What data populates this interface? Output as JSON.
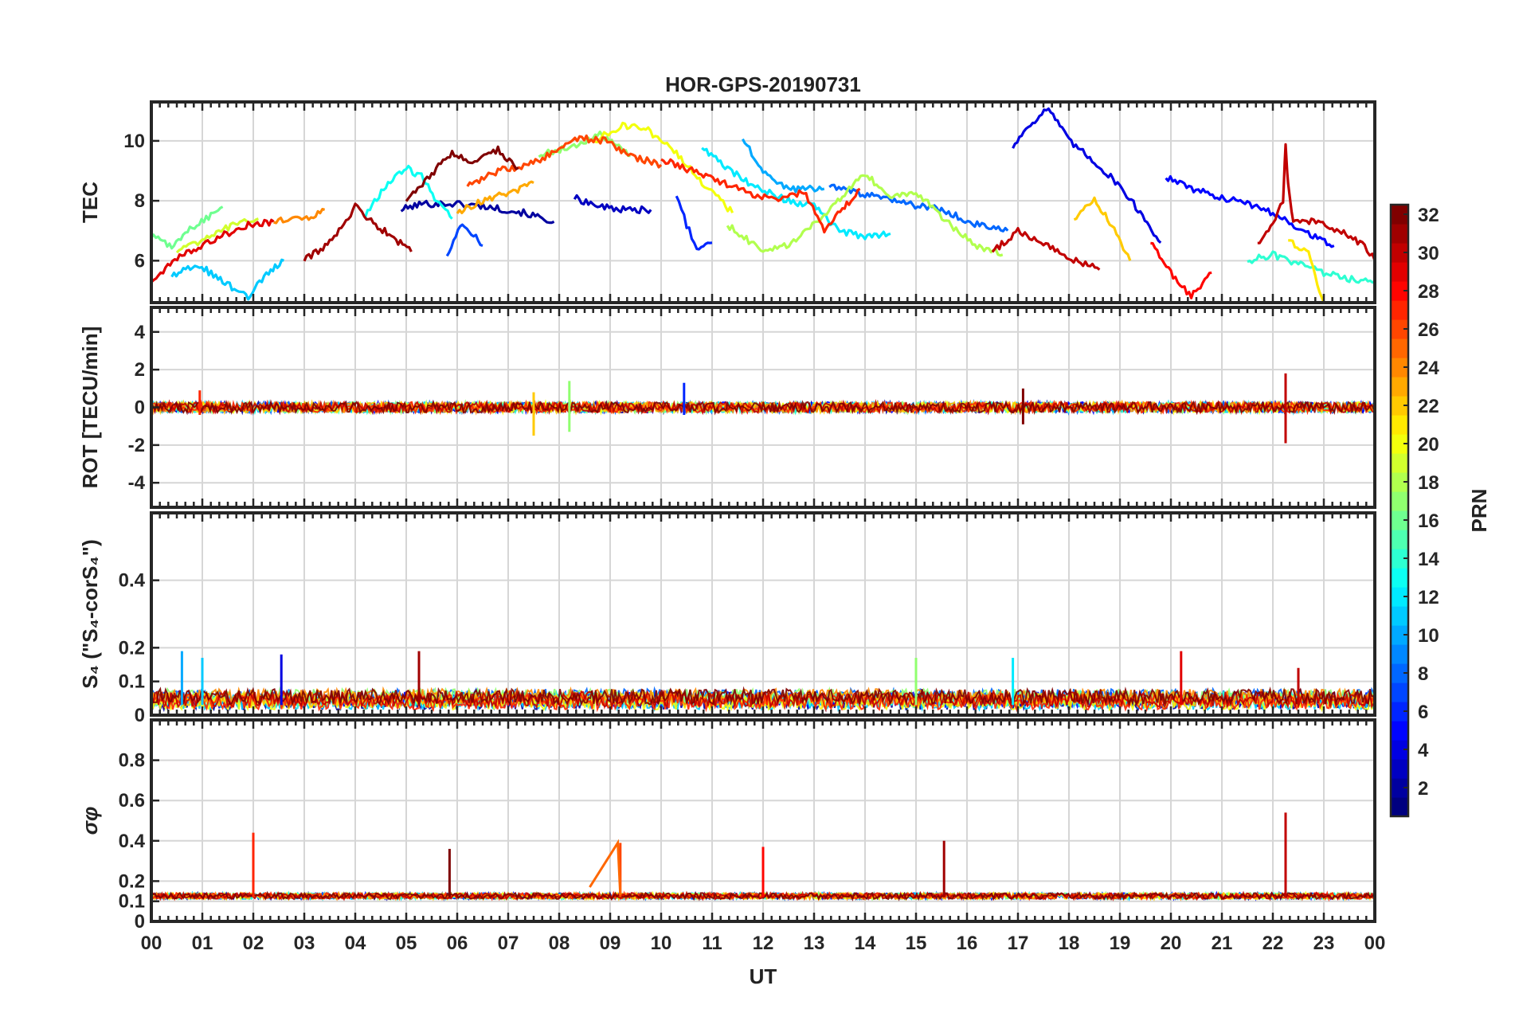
{
  "chart_data": {
    "title": "HOR-GPS-20190731",
    "xlabel": "UT",
    "x_tick_labels": [
      "00",
      "01",
      "02",
      "03",
      "04",
      "05",
      "06",
      "07",
      "08",
      "09",
      "10",
      "11",
      "12",
      "13",
      "14",
      "15",
      "16",
      "17",
      "18",
      "19",
      "20",
      "21",
      "22",
      "23",
      "00"
    ],
    "xlim": [
      0,
      24
    ],
    "grid": true,
    "colorbar": {
      "label": "PRN",
      "range": [
        1,
        32
      ],
      "ticks": [
        2,
        4,
        6,
        8,
        10,
        12,
        14,
        16,
        18,
        20,
        22,
        24,
        26,
        28,
        30,
        32
      ],
      "tick_labels": [
        "2",
        "4",
        "6",
        "8",
        "10",
        "12",
        "14",
        "16",
        "18",
        "20",
        "22",
        "24",
        "26",
        "28",
        "30",
        "32"
      ],
      "colormap": "jet",
      "colors": [
        "#00008f",
        "#0000ff",
        "#0080ff",
        "#00ffff",
        "#80ff80",
        "#ffff00",
        "#ff8000",
        "#ff0000",
        "#800000"
      ]
    },
    "panels": [
      {
        "type": "line",
        "ylabel": "TEC",
        "ylim": [
          4.6,
          11.3
        ],
        "yticks": [
          6,
          8,
          10
        ],
        "ytick_labels": [
          "6",
          "8",
          "10"
        ],
        "series": [
          {
            "prn": 2,
            "points": [
              [
                4.9,
                7.7
              ],
              [
                5.3,
                7.9
              ],
              [
                6.0,
                7.9
              ],
              [
                6.6,
                7.8
              ],
              [
                7.3,
                7.6
              ],
              [
                7.9,
                7.3
              ]
            ]
          },
          {
            "prn": 3,
            "points": [
              [
                8.3,
                8.1
              ],
              [
                8.8,
                7.8
              ],
              [
                9.3,
                7.7
              ],
              [
                9.8,
                7.7
              ]
            ]
          },
          {
            "prn": 4,
            "points": [
              [
                16.9,
                9.8
              ],
              [
                17.2,
                10.5
              ],
              [
                17.6,
                11.1
              ],
              [
                18.0,
                10.0
              ],
              [
                18.5,
                9.3
              ],
              [
                19.0,
                8.5
              ],
              [
                19.4,
                7.6
              ],
              [
                19.8,
                6.6
              ]
            ]
          },
          {
            "prn": 5,
            "points": [
              [
                19.9,
                8.8
              ],
              [
                20.4,
                8.4
              ],
              [
                21.0,
                8.1
              ],
              [
                21.5,
                7.9
              ],
              [
                22.0,
                7.6
              ],
              [
                22.6,
                7.0
              ],
              [
                23.2,
                6.5
              ]
            ]
          },
          {
            "prn": 6,
            "points": [
              [
                10.3,
                8.2
              ],
              [
                10.5,
                7.2
              ],
              [
                10.7,
                6.4
              ],
              [
                11.0,
                6.6
              ]
            ]
          },
          {
            "prn": 7,
            "points": [
              [
                5.8,
                6.2
              ],
              [
                6.1,
                7.3
              ],
              [
                6.5,
                6.5
              ]
            ]
          },
          {
            "prn": 8,
            "points": [
              [
                13.3,
                8.5
              ],
              [
                14.0,
                8.2
              ],
              [
                14.8,
                7.9
              ],
              [
                15.5,
                7.7
              ],
              [
                16.2,
                7.2
              ],
              [
                16.8,
                7.0
              ]
            ]
          },
          {
            "prn": 10,
            "points": [
              [
                11.6,
                10.1
              ],
              [
                12.0,
                9.0
              ],
              [
                12.5,
                8.4
              ],
              [
                13.2,
                8.4
              ]
            ]
          },
          {
            "prn": 11,
            "points": [
              [
                0.4,
                5.5
              ],
              [
                0.9,
                5.9
              ],
              [
                1.4,
                5.3
              ],
              [
                1.9,
                4.8
              ],
              [
                2.3,
                5.6
              ],
              [
                2.6,
                6.0
              ]
            ]
          },
          {
            "prn": 12,
            "points": [
              [
                10.8,
                9.8
              ],
              [
                11.3,
                9.1
              ],
              [
                11.8,
                8.5
              ],
              [
                12.5,
                8.0
              ],
              [
                13.0,
                7.8
              ],
              [
                13.5,
                7.0
              ],
              [
                14.0,
                6.8
              ],
              [
                14.5,
                6.9
              ]
            ]
          },
          {
            "prn": 13,
            "points": [
              [
                4.2,
                7.5
              ],
              [
                4.6,
                8.5
              ],
              [
                5.0,
                9.1
              ],
              [
                5.3,
                8.8
              ],
              [
                5.6,
                8.0
              ],
              [
                5.9,
                7.4
              ]
            ]
          },
          {
            "prn": 14,
            "points": [
              [
                21.5,
                6.0
              ],
              [
                22.0,
                6.2
              ],
              [
                22.5,
                5.9
              ],
              [
                23.0,
                5.6
              ],
              [
                23.5,
                5.4
              ],
              [
                24.0,
                5.3
              ]
            ]
          },
          {
            "prn": 16,
            "points": [
              [
                0.0,
                6.8
              ],
              [
                0.4,
                6.5
              ],
              [
                0.8,
                7.1
              ],
              [
                1.4,
                7.8
              ]
            ]
          },
          {
            "prn": 17,
            "points": [
              [
                7.6,
                9.5
              ],
              [
                8.2,
                9.8
              ],
              [
                8.8,
                10.2
              ],
              [
                9.4,
                9.5
              ]
            ]
          },
          {
            "prn": 18,
            "points": [
              [
                11.3,
                7.2
              ],
              [
                12.0,
                6.3
              ],
              [
                12.6,
                6.6
              ],
              [
                13.2,
                7.5
              ],
              [
                14.0,
                8.9
              ],
              [
                14.5,
                8.1
              ],
              [
                15.0,
                8.3
              ],
              [
                15.6,
                7.3
              ],
              [
                16.2,
                6.5
              ],
              [
                16.7,
                6.2
              ]
            ]
          },
          {
            "prn": 19,
            "points": [
              [
                0.5,
                6.3
              ],
              [
                1.0,
                6.7
              ],
              [
                1.6,
                7.2
              ],
              [
                2.1,
                7.4
              ]
            ]
          },
          {
            "prn": 20,
            "points": [
              [
                8.7,
                10.0
              ],
              [
                9.2,
                10.5
              ],
              [
                9.7,
                10.4
              ],
              [
                10.3,
                9.6
              ],
              [
                10.8,
                8.6
              ],
              [
                11.4,
                7.6
              ]
            ]
          },
          {
            "prn": 21,
            "points": [
              [
                22.3,
                6.7
              ],
              [
                22.7,
                6.2
              ],
              [
                23.0,
                4.6
              ]
            ]
          },
          {
            "prn": 22,
            "points": [
              [
                18.1,
                7.4
              ],
              [
                18.5,
                8.0
              ],
              [
                18.8,
                7.3
              ],
              [
                19.2,
                6.0
              ]
            ]
          },
          {
            "prn": 23,
            "points": [
              [
                6.0,
                7.6
              ],
              [
                6.5,
                8.0
              ],
              [
                7.1,
                8.3
              ],
              [
                7.5,
                8.6
              ]
            ]
          },
          {
            "prn": 24,
            "points": [
              [
                2.4,
                7.3
              ],
              [
                3.0,
                7.4
              ],
              [
                3.4,
                7.7
              ]
            ]
          },
          {
            "prn": 26,
            "points": [
              [
                6.2,
                8.5
              ],
              [
                6.8,
                9.0
              ],
              [
                7.4,
                9.2
              ],
              [
                7.9,
                9.6
              ],
              [
                8.4,
                10.1
              ],
              [
                8.9,
                10.0
              ],
              [
                9.4,
                9.5
              ],
              [
                10.0,
                9.2
              ]
            ]
          },
          {
            "prn": 27,
            "points": [
              [
                10.0,
                9.4
              ],
              [
                10.6,
                9.0
              ],
              [
                11.2,
                8.6
              ],
              [
                11.8,
                8.2
              ],
              [
                12.3,
                8.0
              ],
              [
                12.8,
                8.3
              ],
              [
                13.2,
                7.0
              ],
              [
                13.6,
                7.8
              ],
              [
                13.9,
                8.4
              ]
            ]
          },
          {
            "prn": 28,
            "points": [
              [
                19.6,
                6.6
              ],
              [
                20.0,
                5.6
              ],
              [
                20.4,
                4.8
              ],
              [
                20.8,
                5.6
              ]
            ]
          },
          {
            "prn": 29,
            "points": [
              [
                0.0,
                5.3
              ],
              [
                0.6,
                6.2
              ],
              [
                1.2,
                6.7
              ],
              [
                1.9,
                7.2
              ],
              [
                2.4,
                7.3
              ]
            ]
          },
          {
            "prn": 31,
            "points": [
              [
                3.0,
                6.0
              ],
              [
                3.5,
                6.6
              ],
              [
                4.0,
                7.8
              ],
              [
                4.4,
                7.2
              ],
              [
                4.8,
                6.7
              ],
              [
                5.1,
                6.3
              ]
            ]
          },
          {
            "prn": 32,
            "points": [
              [
                5.0,
                8.0
              ],
              [
                5.5,
                8.9
              ],
              [
                5.9,
                9.6
              ],
              [
                6.3,
                9.3
              ],
              [
                6.8,
                9.7
              ],
              [
                7.2,
                9.1
              ]
            ]
          },
          {
            "prn": 30,
            "points": [
              [
                21.7,
                6.6
              ],
              [
                22.0,
                7.2
              ],
              [
                22.2,
                8.0
              ],
              [
                22.25,
                9.8
              ],
              [
                22.3,
                8.5
              ],
              [
                22.4,
                7.3
              ],
              [
                22.8,
                7.3
              ],
              [
                23.3,
                7.0
              ],
              [
                23.8,
                6.5
              ],
              [
                24.0,
                6.0
              ]
            ]
          },
          {
            "prn": 30,
            "points": [
              [
                16.5,
                6.3
              ],
              [
                17.0,
                7.0
              ],
              [
                17.5,
                6.6
              ],
              [
                18.0,
                6.1
              ],
              [
                18.6,
                5.7
              ]
            ]
          }
        ]
      },
      {
        "type": "line",
        "ylabel": "ROT [TECU/min]",
        "ylim": [
          -5.3,
          5.3
        ],
        "yticks": [
          -4,
          -2,
          0,
          2,
          4
        ],
        "ytick_labels": [
          "-4",
          "-2",
          "0",
          "2",
          "4"
        ],
        "spikes": [
          {
            "prn": 30,
            "x": 22.25,
            "ymin": -1.9,
            "ymax": 1.8
          },
          {
            "prn": 17,
            "x": 8.2,
            "ymin": -1.3,
            "ymax": 1.4
          },
          {
            "prn": 22,
            "x": 7.5,
            "ymin": -1.5,
            "ymax": 0.8
          },
          {
            "prn": 6,
            "x": 10.45,
            "ymin": -0.4,
            "ymax": 1.3
          },
          {
            "prn": 32,
            "x": 17.1,
            "ymin": -0.9,
            "ymax": 1.0
          },
          {
            "prn": 27,
            "x": 0.95,
            "ymin": -0.4,
            "ymax": 0.9
          }
        ]
      },
      {
        "type": "line",
        "ylabel": "S₄ (\"S₄-corS₄\")",
        "ylim": [
          0,
          0.6
        ],
        "yticks": [
          0,
          0.1,
          0.2,
          0.4
        ],
        "ytick_labels": [
          "0",
          "0.1",
          "0.2",
          "0.4"
        ],
        "spikes": [
          {
            "prn": 10,
            "x": 0.6,
            "y": 0.19
          },
          {
            "prn": 11,
            "x": 1.0,
            "y": 0.17
          },
          {
            "prn": 4,
            "x": 2.55,
            "y": 0.18
          },
          {
            "prn": 31,
            "x": 5.25,
            "y": 0.19
          },
          {
            "prn": 29,
            "x": 20.2,
            "y": 0.19
          },
          {
            "prn": 30,
            "x": 22.5,
            "y": 0.14
          },
          {
            "prn": 17,
            "x": 15.0,
            "y": 0.17
          },
          {
            "prn": 12,
            "x": 16.9,
            "y": 0.17
          }
        ]
      },
      {
        "type": "line",
        "ylabel": "σφ",
        "ylim": [
          0,
          1.0
        ],
        "yticks": [
          0,
          0.1,
          0.2,
          0.4,
          0.6,
          0.8
        ],
        "ytick_labels": [
          "0",
          "0.1",
          "0.2",
          "0.4",
          "0.6",
          "0.8"
        ],
        "spikes": [
          {
            "prn": 27,
            "x": 2.0,
            "y": 0.44
          },
          {
            "prn": 32,
            "x": 5.85,
            "y": 0.36
          },
          {
            "prn": 28,
            "x": 12.0,
            "y": 0.37
          },
          {
            "prn": 31,
            "x": 15.55,
            "y": 0.4
          },
          {
            "prn": 30,
            "x": 22.25,
            "y": 0.54
          },
          {
            "prn": 26,
            "x": 9.2,
            "y": 0.39
          }
        ],
        "segments": [
          {
            "prn": 25,
            "points": [
              [
                8.6,
                0.17
              ],
              [
                9.15,
                0.39
              ],
              [
                9.2,
                0.13
              ]
            ]
          }
        ]
      }
    ]
  }
}
